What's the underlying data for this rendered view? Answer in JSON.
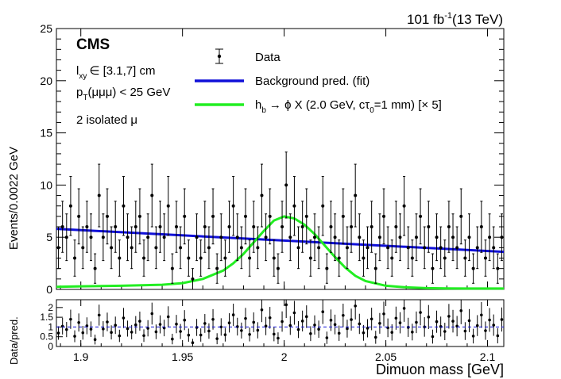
{
  "chart_data": [
    {
      "type": "scatter",
      "panel": "main",
      "experiment": "CMS",
      "luminosity": "101 fb",
      "lumi_sup": "-1",
      "energy": "(13 TeV)",
      "ylabel": "Events/0.0022 GeV",
      "xlim": [
        1.888,
        2.108
      ],
      "ylim": [
        0,
        25
      ],
      "yticks": [
        0,
        5,
        10,
        15,
        20,
        25
      ],
      "ytick_labels": [
        "0",
        "5",
        "10",
        "15",
        "20",
        "25"
      ],
      "selection": {
        "lxy_var": "l",
        "lxy_sub": "xy",
        "lxy_range": "∈ [3.1,7] cm",
        "pt_var": "p",
        "pt_sub": "T",
        "pt_cut": "(μμμ) < 25 GeV",
        "isolation": "2 isolated μ"
      },
      "legend": {
        "data": "Data",
        "background": "Background pred. (fit)",
        "signal_pre": "h",
        "signal_sub": "b",
        "signal_arrow": "→ ϕ X (2.0 GeV, cτ",
        "signal_tau_sub": "0",
        "signal_post": "=1 mm) [× 5]"
      },
      "colors": {
        "background": "#1010d8",
        "signal": "#22ee22",
        "data": "#000000"
      },
      "data_points": {
        "x": [
          1.889,
          1.891,
          1.893,
          1.895,
          1.897,
          1.899,
          1.901,
          1.903,
          1.905,
          1.907,
          1.909,
          1.911,
          1.913,
          1.915,
          1.917,
          1.919,
          1.921,
          1.923,
          1.925,
          1.927,
          1.929,
          1.931,
          1.933,
          1.935,
          1.937,
          1.939,
          1.941,
          1.943,
          1.945,
          1.947,
          1.949,
          1.951,
          1.953,
          1.955,
          1.957,
          1.959,
          1.961,
          1.963,
          1.965,
          1.967,
          1.969,
          1.971,
          1.973,
          1.975,
          1.977,
          1.979,
          1.981,
          1.983,
          1.985,
          1.987,
          1.989,
          1.991,
          1.993,
          1.995,
          1.997,
          1.999,
          2.001,
          2.003,
          2.005,
          2.007,
          2.009,
          2.011,
          2.013,
          2.015,
          2.017,
          2.019,
          2.021,
          2.023,
          2.025,
          2.027,
          2.029,
          2.031,
          2.033,
          2.035,
          2.037,
          2.039,
          2.041,
          2.043,
          2.045,
          2.047,
          2.049,
          2.051,
          2.053,
          2.055,
          2.057,
          2.059,
          2.061,
          2.063,
          2.065,
          2.067,
          2.069,
          2.071,
          2.073,
          2.075,
          2.077,
          2.079,
          2.081,
          2.083,
          2.085,
          2.087,
          2.089,
          2.091,
          2.093,
          2.095,
          2.097,
          2.099,
          2.101,
          2.103,
          2.105,
          2.107
        ],
        "y": [
          4,
          6,
          5,
          8,
          3,
          7,
          4,
          6,
          5,
          2,
          9,
          5,
          7,
          4,
          6,
          3,
          8,
          5,
          4,
          6,
          7,
          3,
          5,
          9,
          4,
          6,
          5,
          8,
          2,
          6,
          4,
          7,
          3,
          1,
          5,
          3,
          6,
          4,
          7,
          2,
          5,
          3,
          6,
          8,
          5,
          4,
          7,
          3,
          6,
          4,
          9,
          5,
          7,
          3,
          2,
          6,
          10,
          5,
          8,
          4,
          6,
          7,
          3,
          5,
          4,
          8,
          2,
          6,
          5,
          3,
          7,
          4,
          6,
          9,
          5,
          3,
          4,
          6,
          2,
          5,
          7,
          4,
          3,
          6,
          5,
          8,
          4,
          3,
          5,
          7,
          4,
          6,
          2,
          5,
          4,
          3,
          6,
          5,
          4,
          7,
          3,
          5,
          2,
          4,
          6,
          3,
          5,
          4,
          2,
          5
        ]
      },
      "background_fit": {
        "x": [
          1.888,
          2.108
        ],
        "y": [
          5.8,
          3.6
        ]
      },
      "signal_curve": {
        "x": [
          1.888,
          1.9,
          1.92,
          1.94,
          1.95,
          1.96,
          1.97,
          1.975,
          1.98,
          1.985,
          1.99,
          1.995,
          2.0,
          2.005,
          2.01,
          2.015,
          2.02,
          2.025,
          2.03,
          2.035,
          2.04,
          2.05,
          2.06,
          2.07,
          2.08,
          2.09,
          2.108
        ],
        "y": [
          0.25,
          0.3,
          0.35,
          0.45,
          0.6,
          1.0,
          1.8,
          2.5,
          3.4,
          4.5,
          5.6,
          6.6,
          7.0,
          6.8,
          6.2,
          5.3,
          4.2,
          3.1,
          2.1,
          1.3,
          0.8,
          0.35,
          0.2,
          0.12,
          0.1,
          0.08,
          0.08
        ]
      }
    },
    {
      "type": "scatter",
      "panel": "ratio",
      "ylabel": "Data/pred.",
      "xlabel": "Dimuon mass [GeV]",
      "xlim": [
        1.888,
        2.108
      ],
      "ylim": [
        0,
        2.4
      ],
      "yticks": [
        0,
        0.5,
        1,
        1.5,
        2
      ],
      "ytick_labels": [
        "0",
        "0.5",
        "1",
        "1.5",
        "2"
      ],
      "xticks": [
        1.9,
        1.95,
        2.0,
        2.05,
        2.1
      ],
      "xtick_labels": [
        "1.9",
        "1.95",
        "2",
        "2.05",
        "2.1"
      ],
      "reference_line": 1.0
    }
  ]
}
